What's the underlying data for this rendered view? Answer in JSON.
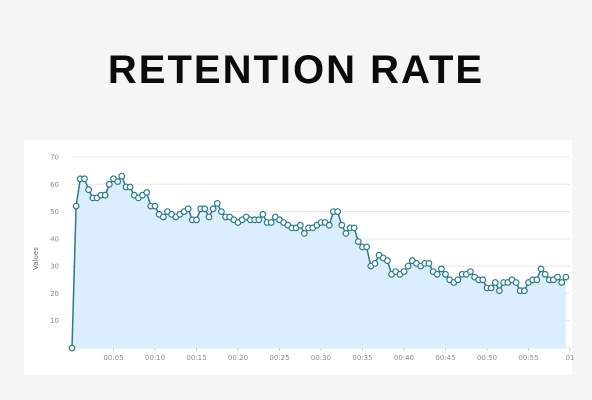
{
  "header": {
    "title": "RETENTION RATE"
  },
  "chart_data": {
    "type": "area",
    "title": "RETENTION RATE",
    "xlabel": "",
    "ylabel": "Values",
    "ylim": [
      0,
      70
    ],
    "y_ticks": [
      "10",
      "20",
      "30",
      "40",
      "50",
      "60",
      "70"
    ],
    "x_ticks": [
      "00:05",
      "00:10",
      "00:15",
      "00:20",
      "00:25",
      "00:30",
      "00:35",
      "00:40",
      "00:45",
      "00:50",
      "00:55",
      "01"
    ],
    "grid": true,
    "line_color": "#2b7a8c",
    "fill_color": "#dbeefd",
    "series": [
      {
        "name": "",
        "x": [
          "00:00",
          "00:00.5",
          "00:01",
          "00:01.5",
          "00:02",
          "00:02.5",
          "00:03",
          "00:03.5",
          "00:04",
          "00:04.5",
          "00:05",
          "00:05.5",
          "00:06",
          "00:06.5",
          "00:07",
          "00:07.5",
          "00:08",
          "00:08.5",
          "00:09",
          "00:09.5",
          "00:10",
          "00:10.5",
          "00:11",
          "00:11.5",
          "00:12",
          "00:12.5",
          "00:13",
          "00:13.5",
          "00:14",
          "00:14.5",
          "00:15",
          "00:15.5",
          "00:16",
          "00:16.5",
          "00:17",
          "00:17.5",
          "00:18",
          "00:18.5",
          "00:19",
          "00:19.5",
          "00:20",
          "00:20.5",
          "00:21",
          "00:21.5",
          "00:22",
          "00:22.5",
          "00:23",
          "00:23.5",
          "00:24",
          "00:24.5",
          "00:25",
          "00:25.5",
          "00:26",
          "00:26.5",
          "00:27",
          "00:27.5",
          "00:28",
          "00:28.5",
          "00:29",
          "00:29.5",
          "00:30",
          "00:30.5",
          "00:31",
          "00:31.5",
          "00:32",
          "00:32.5",
          "00:33",
          "00:33.5",
          "00:34",
          "00:34.5",
          "00:35",
          "00:35.5",
          "00:36",
          "00:36.5",
          "00:37",
          "00:37.5",
          "00:38",
          "00:38.5",
          "00:39",
          "00:39.5",
          "00:40",
          "00:40.5",
          "00:41",
          "00:41.5",
          "00:42",
          "00:42.5",
          "00:43",
          "00:43.5",
          "00:44",
          "00:44.5",
          "00:45",
          "00:45.5",
          "00:46",
          "00:46.5",
          "00:47",
          "00:47.5",
          "00:48",
          "00:48.5",
          "00:49",
          "00:49.5",
          "00:50",
          "00:50.5",
          "00:51",
          "00:51.5",
          "00:52",
          "00:52.5",
          "00:53",
          "00:53.5",
          "00:54",
          "00:54.5",
          "00:55",
          "00:55.5",
          "00:56",
          "00:56.5",
          "00:57",
          "00:57.5",
          "00:58",
          "00:58.5",
          "00:59",
          "00:59.5"
        ],
        "values": [
          0,
          52,
          62,
          62,
          58,
          55,
          55,
          56,
          56,
          60,
          62,
          61,
          63,
          59,
          59,
          56,
          55,
          56,
          57,
          52,
          52,
          49,
          48,
          50,
          49,
          48,
          49,
          50,
          51,
          47,
          47,
          51,
          51,
          48,
          51,
          53,
          50,
          48,
          48,
          47,
          46,
          47,
          48,
          47,
          47,
          47,
          49,
          46,
          46,
          48,
          47,
          46,
          45,
          44,
          44,
          45,
          42,
          44,
          44,
          45,
          46,
          46,
          45,
          50,
          50,
          45,
          42,
          44,
          44,
          39,
          37,
          37,
          30,
          31,
          34,
          33,
          32,
          27,
          28,
          27,
          28,
          30,
          32,
          31,
          30,
          31,
          31,
          28,
          27,
          29,
          27,
          25,
          24,
          25,
          27,
          27,
          28,
          26,
          25,
          25,
          22,
          22,
          24,
          21,
          24,
          24,
          25,
          24,
          21,
          21,
          24,
          25,
          25,
          29,
          27,
          25,
          25,
          26,
          24,
          26
        ]
      }
    ]
  }
}
